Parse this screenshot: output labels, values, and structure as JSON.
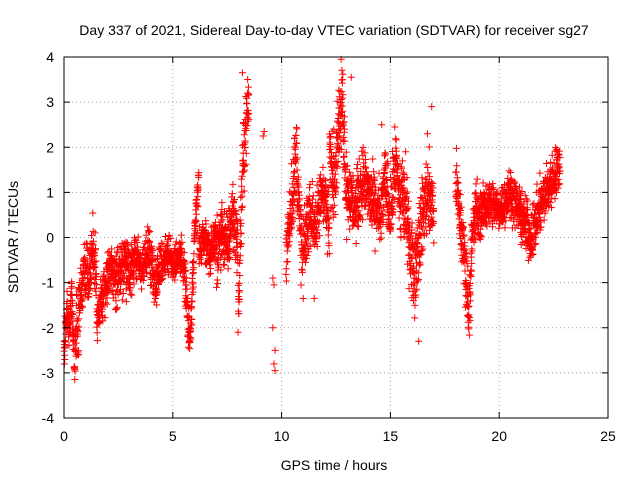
{
  "chart_data": {
    "type": "scatter",
    "title": "Day 337 of 2021, Sidereal Day-to-day VTEC variation (SDTVAR) for receiver sg27",
    "xlabel": "GPS time / hours",
    "ylabel": "SDTVAR / TECUs",
    "xlim": [
      0,
      25
    ],
    "ylim": [
      -4,
      4
    ],
    "xticks": [
      0,
      5,
      10,
      15,
      20,
      25
    ],
    "yticks": [
      -4,
      -3,
      -2,
      -1,
      0,
      1,
      2,
      3,
      4
    ],
    "grid": true,
    "marker": "+",
    "series_color": "#ff0000",
    "segments": [
      {
        "x0": 0.0,
        "x1": 0.6,
        "y": [
          -2.6,
          -1.6,
          -2.0,
          -1.3,
          -2.9,
          -1.5
        ],
        "amp": 0.35
      },
      {
        "x0": 0.6,
        "x1": 1.5,
        "y": [
          -2.3,
          -1.2,
          -0.6,
          -0.9,
          -0.2,
          -0.8
        ],
        "amp": 0.45
      },
      {
        "x0": 1.5,
        "x1": 3.0,
        "y": [
          -1.8,
          -1.3,
          -0.7,
          -1.0,
          -0.6,
          -0.8
        ],
        "amp": 0.4
      },
      {
        "x0": 3.0,
        "x1": 4.5,
        "y": [
          -0.9,
          -0.4,
          -0.7,
          -0.2,
          -1.0,
          -0.5
        ],
        "amp": 0.35
      },
      {
        "x0": 4.5,
        "x1": 5.5,
        "y": [
          -0.6,
          -0.3,
          -0.6,
          -0.4,
          -0.5
        ],
        "amp": 0.3
      },
      {
        "x0": 5.5,
        "x1": 6.2,
        "y": [
          -0.5,
          -1.5,
          -2.4,
          -1.0,
          0.4,
          1.3
        ],
        "amp": 0.4
      },
      {
        "x0": 6.2,
        "x1": 7.0,
        "y": [
          -0.3,
          0.0,
          -0.4,
          0.1
        ],
        "amp": 0.3
      },
      {
        "x0": 7.0,
        "x1": 8.0,
        "y": [
          -0.5,
          0.2,
          -0.3,
          0.6,
          -0.2
        ],
        "amp": 0.5
      },
      {
        "x0": 8.0,
        "x1": 8.5,
        "y": [
          -2.0,
          0.3,
          1.8,
          2.6,
          3.0
        ],
        "amp": 0.5
      },
      {
        "x0": 10.2,
        "x1": 11.0,
        "y": [
          -0.5,
          0.5,
          1.0,
          2.0,
          0.2,
          -0.7
        ],
        "amp": 0.6
      },
      {
        "x0": 11.0,
        "x1": 12.2,
        "y": [
          -0.3,
          0.6,
          0.2,
          1.2,
          0.1
        ],
        "amp": 0.5
      },
      {
        "x0": 12.2,
        "x1": 13.0,
        "y": [
          1.8,
          1.2,
          2.5,
          3.0,
          0.9
        ],
        "amp": 0.6
      },
      {
        "x0": 13.0,
        "x1": 14.5,
        "y": [
          1.1,
          0.6,
          1.3,
          0.8,
          0.5
        ],
        "amp": 0.5
      },
      {
        "x0": 14.5,
        "x1": 15.5,
        "y": [
          0.2,
          1.3,
          0.5,
          1.7,
          0.4
        ],
        "amp": 0.5
      },
      {
        "x0": 15.5,
        "x1": 17.0,
        "y": [
          1.2,
          0.2,
          -0.8,
          0.3,
          1.0,
          0.6
        ],
        "amp": 0.6
      },
      {
        "x0": 18.0,
        "x1": 19.0,
        "y": [
          1.3,
          0.4,
          -0.4,
          -1.6,
          0.2,
          0.8
        ],
        "amp": 0.5
      },
      {
        "x0": 19.0,
        "x1": 21.0,
        "y": [
          0.4,
          0.8,
          0.6,
          1.0,
          0.5
        ],
        "amp": 0.35
      },
      {
        "x0": 21.0,
        "x1": 22.8,
        "y": [
          0.5,
          0.0,
          0.7,
          1.2,
          1.6
        ],
        "amp": 0.4
      }
    ],
    "isolated_points": [
      [
        8.2,
        3.65
      ],
      [
        9.2,
        2.35
      ],
      [
        9.15,
        2.25
      ],
      [
        9.6,
        -0.9
      ],
      [
        9.65,
        -1.05
      ],
      [
        9.6,
        -2.0
      ],
      [
        9.7,
        -2.5
      ],
      [
        9.65,
        -2.8
      ],
      [
        9.7,
        -2.95
      ],
      [
        12.4,
        2.4
      ],
      [
        14.6,
        2.5
      ],
      [
        15.2,
        2.45
      ],
      [
        16.3,
        -2.3
      ],
      [
        16.9,
        2.9
      ],
      [
        16.7,
        2.3
      ],
      [
        15.7,
        1.9
      ],
      [
        11.5,
        -1.35
      ],
      [
        6.9,
        -0.3
      ],
      [
        13.2,
        3.55
      ],
      [
        12.8,
        3.5
      ]
    ]
  }
}
